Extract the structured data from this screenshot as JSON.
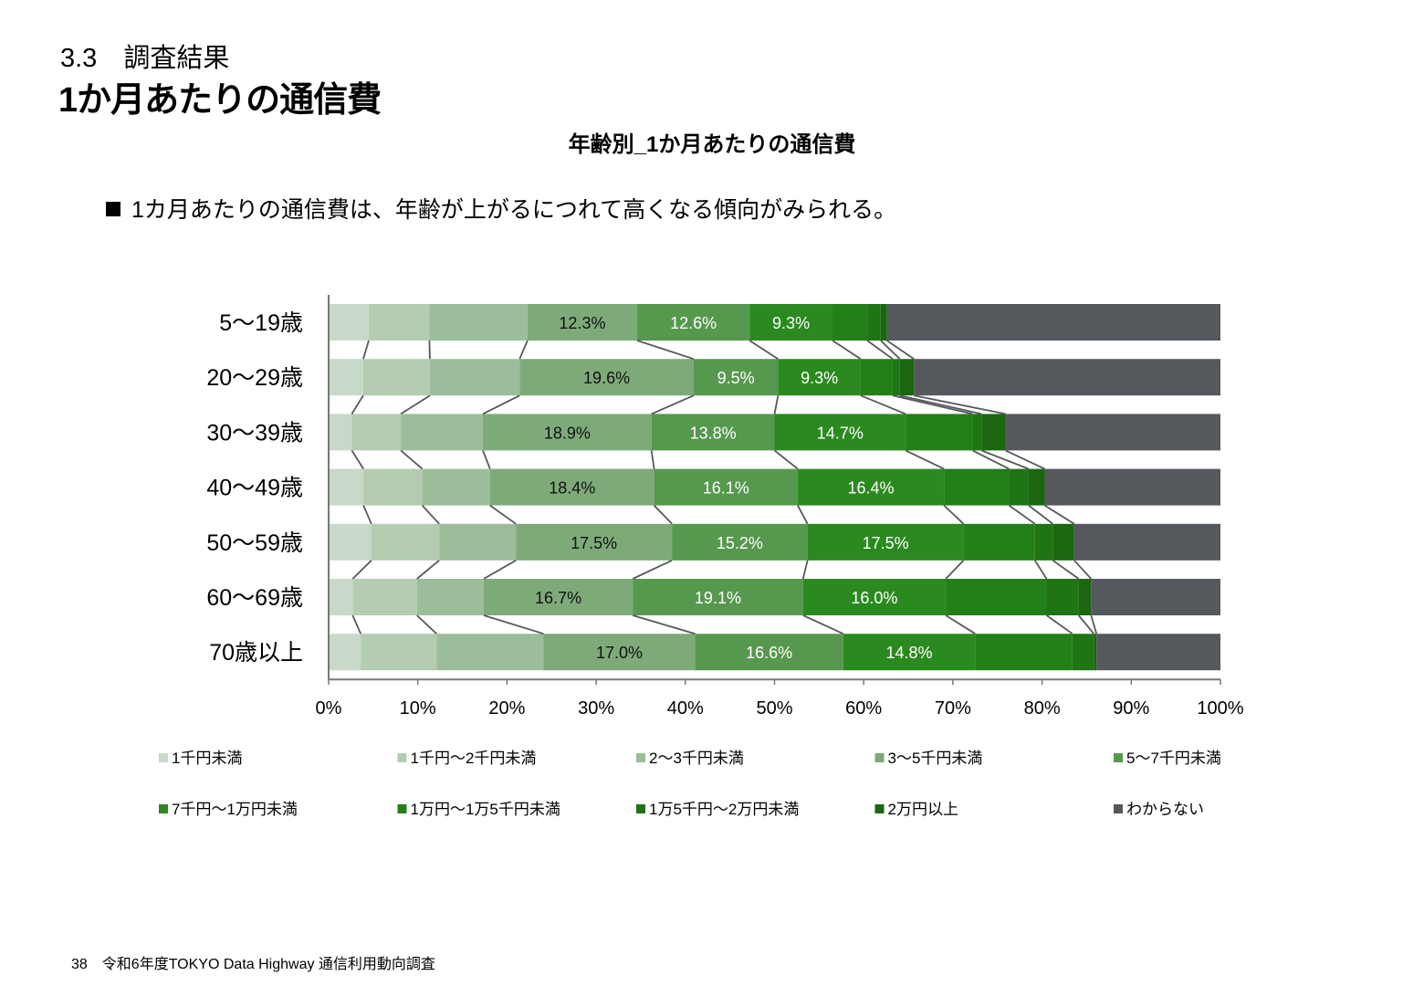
{
  "header": {
    "section": "3.3　調査結果",
    "title": "1か月あたりの通信費"
  },
  "chart_title": "年齢別_1か月あたりの通信費",
  "note": "1カ月あたりの通信費は、年齢が上がるにつれて高くなる傾向がみられる。",
  "footer": {
    "page": "38",
    "text": "令和6年度TOKYO Data Highway 通信利用動向調査"
  },
  "chart_data": {
    "type": "bar",
    "orientation": "horizontal",
    "stacked": "100%",
    "categories": [
      "5〜19歳",
      "20〜29歳",
      "30〜39歳",
      "40〜49歳",
      "50〜59歳",
      "60〜69歳",
      "70歳以上"
    ],
    "xlim": [
      0,
      100
    ],
    "xticks": [
      "0%",
      "10%",
      "20%",
      "30%",
      "40%",
      "50%",
      "60%",
      "70%",
      "80%",
      "90%",
      "100%"
    ],
    "series": [
      {
        "name": "1千円未満",
        "color": "#c9d9c9",
        "values": [
          4.5,
          3.9,
          2.6,
          3.9,
          4.8,
          2.7,
          3.6
        ]
      },
      {
        "name": "1千円〜2千円未満",
        "color": "#b3ccb2",
        "values": [
          6.8,
          7.5,
          5.5,
          6.6,
          7.6,
          7.2,
          8.5
        ]
      },
      {
        "name": "2〜3千円未満",
        "color": "#9cbd9a",
        "values": [
          11.0,
          10.1,
          9.2,
          7.6,
          8.6,
          7.5,
          12.0
        ]
      },
      {
        "name": "3〜5千円未満",
        "color": "#7eaa7a",
        "values": [
          12.3,
          19.6,
          18.9,
          18.4,
          17.5,
          16.7,
          17.0
        ]
      },
      {
        "name": "5〜7千円未満",
        "color": "#57984f",
        "values": [
          12.6,
          9.5,
          13.8,
          16.1,
          15.2,
          19.1,
          16.6
        ]
      },
      {
        "name": "7千円〜1万円未満",
        "color": "#2b8a1f",
        "values": [
          9.3,
          9.3,
          14.7,
          16.4,
          17.5,
          16.0,
          14.8
        ]
      },
      {
        "name": "1万円〜1万5千円未満",
        "color": "#237f18",
        "values": [
          3.9,
          3.6,
          7.5,
          7.3,
          8.0,
          11.3,
          10.9
        ]
      },
      {
        "name": "1万5千円〜2万円未満",
        "color": "#1f7414",
        "values": [
          1.5,
          0.8,
          1.0,
          2.2,
          2.0,
          3.6,
          2.4
        ]
      },
      {
        "name": "2万円以上",
        "color": "#1a6710",
        "values": [
          0.7,
          1.6,
          2.7,
          1.8,
          2.4,
          1.4,
          0.3
        ]
      },
      {
        "name": "わからない",
        "color": "#55585d",
        "values": [
          37.4,
          34.5,
          24.1,
          19.7,
          16.4,
          14.5,
          13.9
        ]
      }
    ],
    "data_labels": [
      {
        "category": 0,
        "series": 3,
        "text": "12.3%"
      },
      {
        "category": 0,
        "series": 4,
        "text": "12.6%"
      },
      {
        "category": 0,
        "series": 5,
        "text": "9.3%"
      },
      {
        "category": 1,
        "series": 3,
        "text": "19.6%"
      },
      {
        "category": 1,
        "series": 4,
        "text": "9.5%"
      },
      {
        "category": 1,
        "series": 5,
        "text": "9.3%"
      },
      {
        "category": 2,
        "series": 3,
        "text": "18.9%"
      },
      {
        "category": 2,
        "series": 4,
        "text": "13.8%"
      },
      {
        "category": 2,
        "series": 5,
        "text": "14.7%"
      },
      {
        "category": 3,
        "series": 3,
        "text": "18.4%"
      },
      {
        "category": 3,
        "series": 4,
        "text": "16.1%"
      },
      {
        "category": 3,
        "series": 5,
        "text": "16.4%"
      },
      {
        "category": 4,
        "series": 3,
        "text": "17.5%"
      },
      {
        "category": 4,
        "series": 4,
        "text": "15.2%"
      },
      {
        "category": 4,
        "series": 5,
        "text": "17.5%"
      },
      {
        "category": 5,
        "series": 3,
        "text": "16.7%"
      },
      {
        "category": 5,
        "series": 4,
        "text": "19.1%"
      },
      {
        "category": 5,
        "series": 5,
        "text": "16.0%"
      },
      {
        "category": 6,
        "series": 3,
        "text": "17.0%"
      },
      {
        "category": 6,
        "series": 4,
        "text": "16.6%"
      },
      {
        "category": 6,
        "series": 5,
        "text": "14.8%"
      }
    ],
    "series_lines": true,
    "legend_position": "bottom"
  }
}
